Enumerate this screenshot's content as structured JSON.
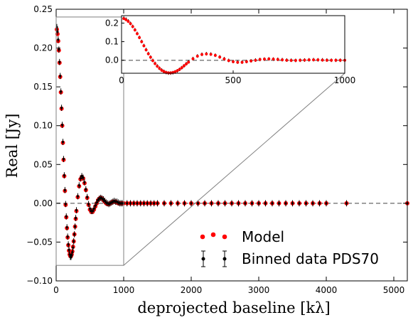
{
  "chart_data": {
    "type": "scatter",
    "xlabel": "deprojected baseline [kλ]",
    "ylabel": "Real [Jy]",
    "xlim": [
      0,
      5200
    ],
    "ylim": [
      -0.1,
      0.25
    ],
    "xticks": [
      0,
      1000,
      2000,
      3000,
      4000,
      5000
    ],
    "yticks": [
      -0.1,
      -0.05,
      0.0,
      0.05,
      0.1,
      0.15,
      0.2,
      0.25
    ],
    "xtick_labels": [
      "0",
      "1000",
      "2000",
      "3000",
      "4000",
      "5000"
    ],
    "ytick_labels": [
      "−0.10",
      "−0.05",
      "0.00",
      "0.05",
      "0.10",
      "0.15",
      "0.20",
      "0.25"
    ],
    "grid": false,
    "reference_line": {
      "y": 0.0,
      "style": "dashed",
      "color": "#808080"
    },
    "legend": {
      "placement": "lower-right",
      "entries": [
        "Model",
        "Binned data PDS70"
      ]
    },
    "series": [
      {
        "name": "Model",
        "marker": "circle",
        "color": "#ff0000",
        "x": [
          10,
          20,
          30,
          40,
          50,
          60,
          70,
          80,
          90,
          100,
          110,
          120,
          130,
          140,
          150,
          160,
          170,
          180,
          190,
          200,
          210,
          220,
          230,
          240,
          250,
          260,
          270,
          280,
          290,
          300,
          320,
          340,
          360,
          380,
          400,
          420,
          440,
          460,
          480,
          500,
          520,
          540,
          560,
          580,
          600,
          620,
          640,
          660,
          680,
          700,
          720,
          740,
          760,
          780,
          800,
          820,
          840,
          860,
          880,
          900,
          920,
          940,
          960,
          980,
          1000,
          1050,
          1100,
          1150,
          1200,
          1250,
          1300,
          1350,
          1400,
          1450,
          1500,
          1600,
          1700,
          1800,
          1900,
          2000,
          2100,
          2200,
          2300,
          2400,
          2500,
          2600,
          2700,
          2800,
          2900,
          3000,
          3100,
          3200,
          3300,
          3400,
          3500,
          3600,
          3700,
          3800,
          3900,
          4000,
          4300,
          5200
        ],
        "y": [
          0.224,
          0.218,
          0.209,
          0.197,
          0.181,
          0.163,
          0.143,
          0.122,
          0.1,
          0.078,
          0.056,
          0.035,
          0.016,
          -0.002,
          -0.018,
          -0.032,
          -0.044,
          -0.054,
          -0.061,
          -0.066,
          -0.068,
          -0.068,
          -0.066,
          -0.062,
          -0.056,
          -0.049,
          -0.04,
          -0.03,
          -0.02,
          -0.01,
          0.008,
          0.022,
          0.031,
          0.034,
          0.032,
          0.026,
          0.017,
          0.007,
          -0.002,
          -0.008,
          -0.011,
          -0.011,
          -0.008,
          -0.004,
          0.0,
          0.004,
          0.006,
          0.007,
          0.006,
          0.004,
          0.002,
          0.0,
          -0.001,
          -0.001,
          0.0,
          0.001,
          0.002,
          0.002,
          0.002,
          0.001,
          0.0,
          0.0,
          0.0,
          0.0,
          0.0,
          0.0,
          0.0,
          0.0,
          0.0,
          0.0,
          0.0,
          0.0,
          0.0,
          0.0,
          0.0,
          0.0,
          0.0,
          0.0,
          0.0,
          0.0,
          0.0,
          0.0,
          0.0,
          0.0,
          0.0,
          0.0,
          0.0,
          0.0,
          0.0,
          0.0,
          0.0,
          0.0,
          0.0,
          0.0,
          0.0,
          0.0,
          0.0,
          0.0,
          0.0,
          0.0,
          0.0,
          0.0
        ]
      },
      {
        "name": "Binned data PDS70",
        "marker": "point-errorbar",
        "color": "#000000",
        "x": [
          10,
          20,
          30,
          40,
          50,
          60,
          70,
          80,
          90,
          100,
          110,
          120,
          130,
          140,
          150,
          160,
          170,
          180,
          190,
          200,
          210,
          220,
          230,
          240,
          250,
          260,
          270,
          280,
          290,
          300,
          320,
          340,
          360,
          380,
          400,
          420,
          440,
          460,
          480,
          500,
          520,
          540,
          560,
          580,
          600,
          620,
          640,
          660,
          680,
          700,
          720,
          740,
          760,
          780,
          800,
          820,
          840,
          860,
          880,
          900,
          920,
          940,
          960,
          980,
          1000,
          1050,
          1100,
          1150,
          1200,
          1250,
          1300,
          1350,
          1400,
          1450,
          1500,
          1600,
          1700,
          1800,
          1900,
          2000,
          2100,
          2200,
          2300,
          2400,
          2500,
          2600,
          2700,
          2800,
          2900,
          3000,
          3100,
          3200,
          3300,
          3400,
          3500,
          3600,
          3700,
          3800,
          3900,
          4000,
          4300,
          5200
        ],
        "y": [
          0.227,
          0.221,
          0.211,
          0.198,
          0.182,
          0.164,
          0.144,
          0.123,
          0.101,
          0.079,
          0.057,
          0.036,
          0.017,
          -0.001,
          -0.017,
          -0.031,
          -0.043,
          -0.053,
          -0.06,
          -0.066,
          -0.069,
          -0.069,
          -0.067,
          -0.063,
          -0.057,
          -0.049,
          -0.04,
          -0.03,
          -0.019,
          -0.009,
          0.009,
          0.023,
          0.032,
          0.035,
          0.033,
          0.027,
          0.018,
          0.008,
          -0.001,
          -0.007,
          -0.01,
          -0.01,
          -0.007,
          -0.003,
          0.001,
          0.004,
          0.006,
          0.007,
          0.006,
          0.005,
          0.003,
          0.001,
          0.0,
          -0.001,
          0.0,
          0.001,
          0.002,
          0.003,
          0.002,
          0.002,
          0.001,
          0.0,
          0.0,
          0.0,
          0.0,
          0.0,
          0.0,
          0.0,
          0.0,
          0.0,
          0.0,
          0.0,
          0.0,
          0.0,
          0.0,
          0.0,
          0.0,
          0.0,
          0.0,
          0.0,
          0.0,
          0.0,
          0.0,
          0.0,
          0.0,
          0.0,
          0.0,
          0.0,
          0.0,
          0.0,
          0.0,
          0.0,
          0.0,
          0.0,
          0.0,
          0.0,
          0.0,
          0.0,
          0.0,
          0.0,
          0.0,
          0.0
        ],
        "error": 0.004
      }
    ],
    "inset": {
      "xlim": [
        0,
        1000
      ],
      "ylim": [
        -0.07,
        0.24
      ],
      "xticks": [
        0,
        500,
        1000
      ],
      "yticks": [
        0.0,
        0.1,
        0.2
      ],
      "xtick_labels": [
        "0",
        "500",
        "1000"
      ],
      "ytick_labels": [
        "0.0",
        "0.1",
        "0.2"
      ]
    },
    "zoom_region": {
      "x": [
        0,
        1000
      ],
      "y": [
        -0.08,
        0.24
      ]
    }
  }
}
